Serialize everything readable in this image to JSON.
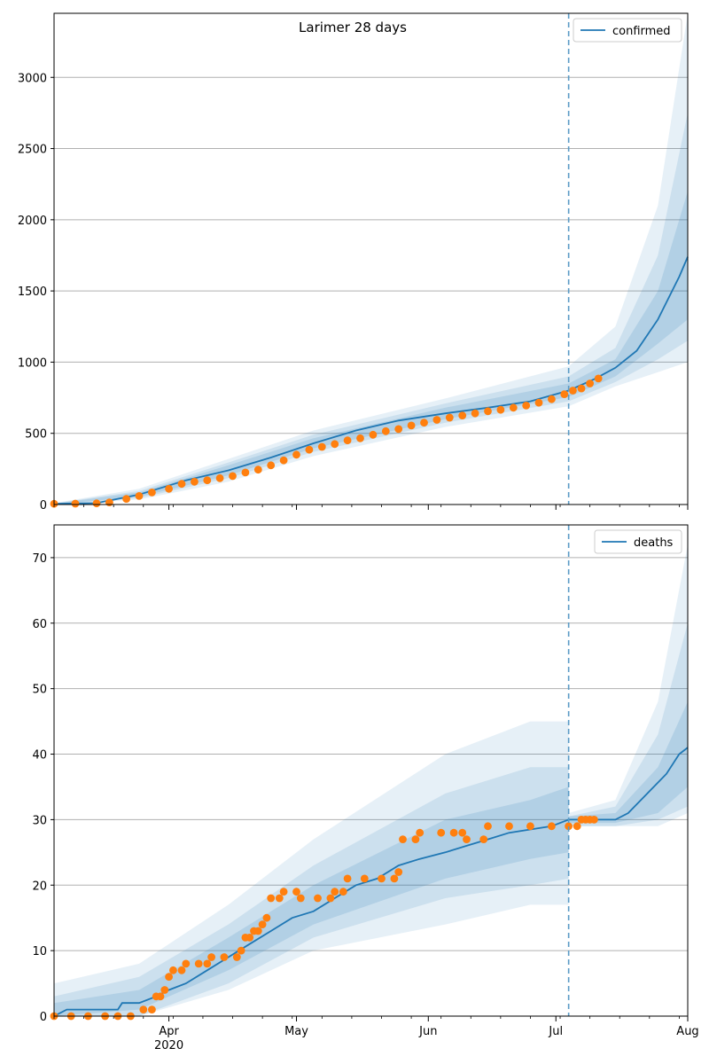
{
  "figure": {
    "title": "Larimer 28 days",
    "colors": {
      "model": "#1f77b4",
      "observed": "#ff7f0e",
      "grid": "#b0b0b0",
      "marker_line": "#5b9bc6"
    }
  },
  "x_axis": {
    "start_date": "2020-03-05",
    "end_date": "2020-08-01",
    "major_ticks": [
      {
        "date": "2020-04-01",
        "label": "Apr",
        "sublabel": "2020"
      },
      {
        "date": "2020-05-01",
        "label": "May",
        "sublabel": ""
      },
      {
        "date": "2020-06-01",
        "label": "Jun",
        "sublabel": ""
      },
      {
        "date": "2020-07-01",
        "label": "Jul",
        "sublabel": ""
      },
      {
        "date": "2020-08-01",
        "label": "Aug",
        "sublabel": ""
      }
    ],
    "forecast_start_date": "2020-07-04"
  },
  "chart_data": [
    {
      "type": "line",
      "name": "confirmed",
      "legend": "confirmed",
      "legend_position": "top-right",
      "ylim": [
        0,
        3450
      ],
      "yticks": [
        0,
        500,
        1000,
        1500,
        2000,
        2500,
        3000
      ],
      "grid": true,
      "model_median": [
        [
          "2020-03-05",
          5
        ],
        [
          "2020-03-15",
          10
        ],
        [
          "2020-03-25",
          70
        ],
        [
          "2020-04-05",
          170
        ],
        [
          "2020-04-15",
          240
        ],
        [
          "2020-04-25",
          330
        ],
        [
          "2020-05-05",
          430
        ],
        [
          "2020-05-15",
          520
        ],
        [
          "2020-05-25",
          590
        ],
        [
          "2020-06-05",
          640
        ],
        [
          "2020-06-15",
          680
        ],
        [
          "2020-06-25",
          725
        ],
        [
          "2020-07-04",
          800
        ],
        [
          "2020-07-10",
          880
        ],
        [
          "2020-07-15",
          960
        ],
        [
          "2020-07-20",
          1080
        ],
        [
          "2020-07-25",
          1300
        ],
        [
          "2020-07-30",
          1600
        ],
        [
          "2020-08-01",
          1740
        ]
      ],
      "bands": [
        {
          "level": "outer",
          "points": [
            [
              "2020-03-05",
              0,
              10
            ],
            [
              "2020-03-25",
              35,
              110
            ],
            [
              "2020-04-15",
              160,
              320
            ],
            [
              "2020-05-05",
              340,
              520
            ],
            [
              "2020-06-05",
              545,
              745
            ],
            [
              "2020-07-04",
              690,
              970
            ],
            [
              "2020-07-15",
              830,
              1250
            ],
            [
              "2020-07-25",
              930,
              2100
            ],
            [
              "2020-08-01",
              1000,
              3450
            ]
          ]
        },
        {
          "level": "middle",
          "points": [
            [
              "2020-03-05",
              0,
              8
            ],
            [
              "2020-03-25",
              45,
              95
            ],
            [
              "2020-04-15",
              185,
              295
            ],
            [
              "2020-05-05",
              370,
              490
            ],
            [
              "2020-06-05",
              575,
              710
            ],
            [
              "2020-07-04",
              725,
              900
            ],
            [
              "2020-07-15",
              860,
              1100
            ],
            [
              "2020-07-25",
              1020,
              1750
            ],
            [
              "2020-08-01",
              1150,
              2750
            ]
          ]
        },
        {
          "level": "inner",
          "points": [
            [
              "2020-03-05",
              0,
              6
            ],
            [
              "2020-03-25",
              55,
              85
            ],
            [
              "2020-04-15",
              205,
              275
            ],
            [
              "2020-05-05",
              395,
              465
            ],
            [
              "2020-06-05",
              600,
              680
            ],
            [
              "2020-07-04",
              755,
              850
            ],
            [
              "2020-07-15",
              900,
              1020
            ],
            [
              "2020-07-25",
              1130,
              1500
            ],
            [
              "2020-08-01",
              1300,
              2200
            ]
          ]
        }
      ],
      "observed": [
        [
          "2020-03-05",
          5
        ],
        [
          "2020-03-10",
          6
        ],
        [
          "2020-03-15",
          8
        ],
        [
          "2020-03-18",
          15
        ],
        [
          "2020-03-22",
          40
        ],
        [
          "2020-03-25",
          60
        ],
        [
          "2020-03-28",
          85
        ],
        [
          "2020-04-01",
          110
        ],
        [
          "2020-04-04",
          145
        ],
        [
          "2020-04-07",
          160
        ],
        [
          "2020-04-10",
          170
        ],
        [
          "2020-04-13",
          185
        ],
        [
          "2020-04-16",
          200
        ],
        [
          "2020-04-19",
          225
        ],
        [
          "2020-04-22",
          245
        ],
        [
          "2020-04-25",
          275
        ],
        [
          "2020-04-28",
          310
        ],
        [
          "2020-05-01",
          350
        ],
        [
          "2020-05-04",
          385
        ],
        [
          "2020-05-07",
          405
        ],
        [
          "2020-05-10",
          425
        ],
        [
          "2020-05-13",
          450
        ],
        [
          "2020-05-16",
          465
        ],
        [
          "2020-05-19",
          490
        ],
        [
          "2020-05-22",
          515
        ],
        [
          "2020-05-25",
          530
        ],
        [
          "2020-05-28",
          555
        ],
        [
          "2020-05-31",
          575
        ],
        [
          "2020-06-03",
          595
        ],
        [
          "2020-06-06",
          610
        ],
        [
          "2020-06-09",
          625
        ],
        [
          "2020-06-12",
          640
        ],
        [
          "2020-06-15",
          655
        ],
        [
          "2020-06-18",
          665
        ],
        [
          "2020-06-21",
          680
        ],
        [
          "2020-06-24",
          695
        ],
        [
          "2020-06-27",
          715
        ],
        [
          "2020-06-30",
          740
        ],
        [
          "2020-07-03",
          775
        ],
        [
          "2020-07-05",
          800
        ],
        [
          "2020-07-07",
          815
        ],
        [
          "2020-07-09",
          850
        ],
        [
          "2020-07-11",
          885
        ]
      ]
    },
    {
      "type": "line",
      "name": "deaths",
      "legend": "deaths",
      "legend_position": "top-right",
      "ylim": [
        0,
        75
      ],
      "yticks": [
        0,
        10,
        20,
        30,
        40,
        50,
        60,
        70
      ],
      "grid": true,
      "model_median": [
        [
          "2020-03-05",
          0
        ],
        [
          "2020-03-08",
          1
        ],
        [
          "2020-03-20",
          1
        ],
        [
          "2020-03-21",
          2
        ],
        [
          "2020-03-25",
          2
        ],
        [
          "2020-03-29",
          3
        ],
        [
          "2020-04-01",
          4
        ],
        [
          "2020-04-05",
          5
        ],
        [
          "2020-04-10",
          7
        ],
        [
          "2020-04-15",
          9
        ],
        [
          "2020-04-20",
          11
        ],
        [
          "2020-04-25",
          13
        ],
        [
          "2020-04-30",
          15
        ],
        [
          "2020-05-05",
          16
        ],
        [
          "2020-05-10",
          18
        ],
        [
          "2020-05-15",
          20
        ],
        [
          "2020-05-20",
          21
        ],
        [
          "2020-05-25",
          23
        ],
        [
          "2020-05-30",
          24
        ],
        [
          "2020-06-05",
          25
        ],
        [
          "2020-06-10",
          26
        ],
        [
          "2020-06-15",
          27
        ],
        [
          "2020-06-20",
          28
        ],
        [
          "2020-06-30",
          29
        ],
        [
          "2020-07-04",
          30
        ],
        [
          "2020-07-15",
          30
        ],
        [
          "2020-07-18",
          31
        ],
        [
          "2020-07-21",
          33
        ],
        [
          "2020-07-24",
          35
        ],
        [
          "2020-07-27",
          37
        ],
        [
          "2020-07-30",
          40
        ],
        [
          "2020-08-01",
          41
        ]
      ],
      "bands": [
        {
          "level": "outer",
          "points": [
            [
              "2020-03-05",
              0,
              5
            ],
            [
              "2020-03-25",
              0,
              8
            ],
            [
              "2020-04-15",
              4,
              17
            ],
            [
              "2020-05-05",
              10,
              27
            ],
            [
              "2020-06-05",
              14,
              40
            ],
            [
              "2020-06-25",
              17,
              45
            ],
            [
              "2020-07-04",
              17,
              45
            ],
            [
              "2020-07-04",
              29,
              31
            ],
            [
              "2020-07-15",
              29,
              33
            ],
            [
              "2020-07-25",
              29,
              48
            ],
            [
              "2020-08-01",
              31,
              72
            ]
          ]
        },
        {
          "level": "middle",
          "points": [
            [
              "2020-03-05",
              0,
              3
            ],
            [
              "2020-03-25",
              0,
              6
            ],
            [
              "2020-04-15",
              5,
              14
            ],
            [
              "2020-05-05",
              12,
              23
            ],
            [
              "2020-06-05",
              18,
              34
            ],
            [
              "2020-06-25",
              20,
              38
            ],
            [
              "2020-07-04",
              21,
              38
            ],
            [
              "2020-07-04",
              29,
              30.5
            ],
            [
              "2020-07-15",
              29,
              32
            ],
            [
              "2020-07-25",
              30,
              43
            ],
            [
              "2020-08-01",
              32,
              60
            ]
          ]
        },
        {
          "level": "inner",
          "points": [
            [
              "2020-03-05",
              0,
              2
            ],
            [
              "2020-03-25",
              1,
              4
            ],
            [
              "2020-04-15",
              7,
              12
            ],
            [
              "2020-05-05",
              14,
              20
            ],
            [
              "2020-06-05",
              21,
              30
            ],
            [
              "2020-06-25",
              24,
              33
            ],
            [
              "2020-07-04",
              25,
              35
            ],
            [
              "2020-07-04",
              29.5,
              30.5
            ],
            [
              "2020-07-15",
              29.5,
              31
            ],
            [
              "2020-07-25",
              31,
              38
            ],
            [
              "2020-08-01",
              35,
              48
            ]
          ]
        }
      ],
      "observed": [
        [
          "2020-03-05",
          0
        ],
        [
          "2020-03-09",
          0
        ],
        [
          "2020-03-13",
          0
        ],
        [
          "2020-03-17",
          0
        ],
        [
          "2020-03-20",
          0
        ],
        [
          "2020-03-23",
          0
        ],
        [
          "2020-03-26",
          1
        ],
        [
          "2020-03-28",
          1
        ],
        [
          "2020-03-29",
          3
        ],
        [
          "2020-03-30",
          3
        ],
        [
          "2020-03-31",
          4
        ],
        [
          "2020-04-01",
          6
        ],
        [
          "2020-04-02",
          7
        ],
        [
          "2020-04-04",
          7
        ],
        [
          "2020-04-05",
          8
        ],
        [
          "2020-04-08",
          8
        ],
        [
          "2020-04-10",
          8
        ],
        [
          "2020-04-11",
          9
        ],
        [
          "2020-04-14",
          9
        ],
        [
          "2020-04-17",
          9
        ],
        [
          "2020-04-18",
          10
        ],
        [
          "2020-04-19",
          12
        ],
        [
          "2020-04-20",
          12
        ],
        [
          "2020-04-21",
          13
        ],
        [
          "2020-04-22",
          13
        ],
        [
          "2020-04-23",
          14
        ],
        [
          "2020-04-24",
          15
        ],
        [
          "2020-04-25",
          18
        ],
        [
          "2020-04-27",
          18
        ],
        [
          "2020-04-28",
          19
        ],
        [
          "2020-05-01",
          19
        ],
        [
          "2020-05-02",
          18
        ],
        [
          "2020-05-06",
          18
        ],
        [
          "2020-05-09",
          18
        ],
        [
          "2020-05-10",
          19
        ],
        [
          "2020-05-12",
          19
        ],
        [
          "2020-05-13",
          21
        ],
        [
          "2020-05-17",
          21
        ],
        [
          "2020-05-21",
          21
        ],
        [
          "2020-05-24",
          21
        ],
        [
          "2020-05-25",
          22
        ],
        [
          "2020-05-26",
          27
        ],
        [
          "2020-05-29",
          27
        ],
        [
          "2020-05-30",
          28
        ],
        [
          "2020-06-04",
          28
        ],
        [
          "2020-06-07",
          28
        ],
        [
          "2020-06-09",
          28
        ],
        [
          "2020-06-10",
          27
        ],
        [
          "2020-06-14",
          27
        ],
        [
          "2020-06-15",
          29
        ],
        [
          "2020-06-20",
          29
        ],
        [
          "2020-06-25",
          29
        ],
        [
          "2020-06-30",
          29
        ],
        [
          "2020-07-04",
          29
        ],
        [
          "2020-07-06",
          29
        ],
        [
          "2020-07-07",
          30
        ],
        [
          "2020-07-08",
          30
        ],
        [
          "2020-07-09",
          30
        ],
        [
          "2020-07-10",
          30
        ]
      ]
    }
  ]
}
